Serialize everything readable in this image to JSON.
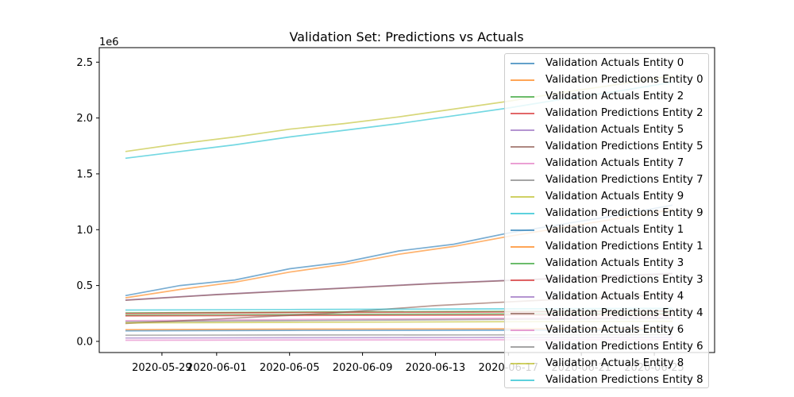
{
  "chart_data": {
    "type": "line",
    "title": "Validation Set: Predictions vs Actuals",
    "xlabel": "",
    "ylabel": "",
    "y_offset_label": "1e6",
    "x_tick_labels": [
      "2020-05-29",
      "2020-06-01",
      "2020-06-05",
      "2020-06-09",
      "2020-06-13",
      "2020-06-17",
      "2020-06-21",
      "2020-06-25"
    ],
    "y_tick_labels": [
      "0.0",
      "0.5",
      "1.0",
      "1.5",
      "2.0",
      "2.5"
    ],
    "x_range": [
      "2020-05-27",
      "2020-06-27"
    ],
    "ylim": [
      -100000,
      2630000
    ],
    "legend_position": "upper right",
    "series": [
      {
        "name": "Validation Actuals Entity 0",
        "color": "#1f77b4",
        "x": [
          "2020-05-27",
          "2020-05-30",
          "2020-06-02",
          "2020-06-05",
          "2020-06-08",
          "2020-06-11",
          "2020-06-14",
          "2020-06-17",
          "2020-06-20",
          "2020-06-23",
          "2020-06-26"
        ],
        "values": [
          410000,
          500000,
          550000,
          650000,
          710000,
          810000,
          870000,
          970000,
          1050000,
          1130000,
          1220000
        ]
      },
      {
        "name": "Validation Predictions Entity 0",
        "color": "#ff7f0e",
        "x": [
          "2020-05-27",
          "2020-05-30",
          "2020-06-02",
          "2020-06-05",
          "2020-06-08",
          "2020-06-11",
          "2020-06-14",
          "2020-06-17",
          "2020-06-20",
          "2020-06-23",
          "2020-06-26"
        ],
        "values": [
          390000,
          465000,
          530000,
          620000,
          690000,
          780000,
          850000,
          940000,
          1020000,
          1100000,
          1180000
        ]
      },
      {
        "name": "Validation Actuals Entity 2",
        "color": "#2ca02c",
        "x": [
          "2020-05-27",
          "2020-06-05",
          "2020-06-15",
          "2020-06-26"
        ],
        "values": [
          255000,
          262000,
          268000,
          275000
        ]
      },
      {
        "name": "Validation Predictions Entity 2",
        "color": "#d62728",
        "x": [
          "2020-05-27",
          "2020-06-05",
          "2020-06-15",
          "2020-06-26"
        ],
        "values": [
          250000,
          258000,
          262000,
          270000
        ]
      },
      {
        "name": "Validation Actuals Entity 5",
        "color": "#9467bd",
        "x": [
          "2020-05-27",
          "2020-06-01",
          "2020-06-07",
          "2020-06-13",
          "2020-06-19",
          "2020-06-26"
        ],
        "values": [
          370000,
          420000,
          470000,
          520000,
          560000,
          610000
        ]
      },
      {
        "name": "Validation Predictions Entity 5",
        "color": "#8c564b",
        "x": [
          "2020-05-27",
          "2020-06-01",
          "2020-06-07",
          "2020-06-13",
          "2020-06-19",
          "2020-06-26"
        ],
        "values": [
          368000,
          418000,
          468000,
          518000,
          558000,
          605000
        ]
      },
      {
        "name": "Validation Actuals Entity 7",
        "color": "#e377c2",
        "x": [
          "2020-05-27",
          "2020-06-05",
          "2020-06-15",
          "2020-06-26"
        ],
        "values": [
          185000,
          195000,
          205000,
          215000
        ]
      },
      {
        "name": "Validation Predictions Entity 7",
        "color": "#7f7f7f",
        "x": [
          "2020-05-27",
          "2020-06-05",
          "2020-06-15",
          "2020-06-26"
        ],
        "values": [
          175000,
          185000,
          195000,
          205000
        ]
      },
      {
        "name": "Validation Actuals Entity 9",
        "color": "#bcbd22",
        "x": [
          "2020-05-27",
          "2020-05-30",
          "2020-06-02",
          "2020-06-05",
          "2020-06-08",
          "2020-06-11",
          "2020-06-14",
          "2020-06-17",
          "2020-06-20",
          "2020-06-23",
          "2020-06-26"
        ],
        "values": [
          1700000,
          1770000,
          1830000,
          1900000,
          1950000,
          2010000,
          2080000,
          2150000,
          2230000,
          2300000,
          2380000
        ]
      },
      {
        "name": "Validation Predictions Entity 9",
        "color": "#17becf",
        "x": [
          "2020-05-27",
          "2020-05-30",
          "2020-06-02",
          "2020-06-05",
          "2020-06-08",
          "2020-06-11",
          "2020-06-14",
          "2020-06-17",
          "2020-06-20",
          "2020-06-23",
          "2020-06-26"
        ],
        "values": [
          1640000,
          1700000,
          1760000,
          1830000,
          1890000,
          1950000,
          2020000,
          2090000,
          2170000,
          2240000,
          2320000
        ]
      },
      {
        "name": "Validation Actuals Entity 1",
        "color": "#1f77b4",
        "x": [
          "2020-05-27",
          "2020-06-05",
          "2020-06-15",
          "2020-06-26"
        ],
        "values": [
          95000,
          98000,
          100000,
          102000
        ]
      },
      {
        "name": "Validation Predictions Entity 1",
        "color": "#ff7f0e",
        "x": [
          "2020-05-27",
          "2020-06-05",
          "2020-06-15",
          "2020-06-26"
        ],
        "values": [
          105000,
          110000,
          112000,
          115000
        ]
      },
      {
        "name": "Validation Actuals Entity 3",
        "color": "#2ca02c",
        "x": [
          "2020-05-27",
          "2020-06-05",
          "2020-06-15",
          "2020-06-26"
        ],
        "values": [
          235000,
          240000,
          245000,
          250000
        ]
      },
      {
        "name": "Validation Predictions Entity 3",
        "color": "#d62728",
        "x": [
          "2020-05-27",
          "2020-06-05",
          "2020-06-15",
          "2020-06-26"
        ],
        "values": [
          228000,
          232000,
          235000,
          240000
        ]
      },
      {
        "name": "Validation Actuals Entity 4",
        "color": "#9467bd",
        "x": [
          "2020-05-27",
          "2020-06-05",
          "2020-06-15",
          "2020-06-26"
        ],
        "values": [
          30000,
          32000,
          34000,
          36000
        ]
      },
      {
        "name": "Validation Predictions Entity 4",
        "color": "#8c564b",
        "x": [
          "2020-05-27",
          "2020-06-01",
          "2020-06-07",
          "2020-06-13",
          "2020-06-19",
          "2020-06-26"
        ],
        "values": [
          160000,
          200000,
          250000,
          320000,
          370000,
          420000
        ]
      },
      {
        "name": "Validation Actuals Entity 6",
        "color": "#e377c2",
        "x": [
          "2020-05-27",
          "2020-06-05",
          "2020-06-15",
          "2020-06-26"
        ],
        "values": [
          10000,
          12000,
          14000,
          16000
        ]
      },
      {
        "name": "Validation Predictions Entity 6",
        "color": "#7f7f7f",
        "x": [
          "2020-05-27",
          "2020-06-05",
          "2020-06-15",
          "2020-06-26"
        ],
        "values": [
          55000,
          57000,
          58000,
          60000
        ]
      },
      {
        "name": "Validation Actuals Entity 8",
        "color": "#bcbd22",
        "x": [
          "2020-05-27",
          "2020-06-05",
          "2020-06-15",
          "2020-06-26"
        ],
        "values": [
          165000,
          170000,
          175000,
          180000
        ]
      },
      {
        "name": "Validation Predictions Entity 8",
        "color": "#17becf",
        "x": [
          "2020-05-27",
          "2020-06-05",
          "2020-06-15",
          "2020-06-26"
        ],
        "values": [
          280000,
          285000,
          290000,
          295000
        ]
      }
    ]
  }
}
